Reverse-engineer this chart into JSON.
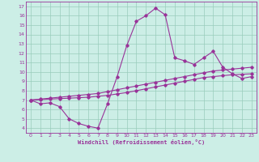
{
  "xlabel": "Windchill (Refroidissement éolien,°C)",
  "background_color": "#cceee6",
  "line_color": "#993399",
  "grid_color": "#99ccbb",
  "xlim": [
    -0.5,
    23.5
  ],
  "ylim": [
    3.5,
    17.5
  ],
  "xticks": [
    0,
    1,
    2,
    3,
    4,
    5,
    6,
    7,
    8,
    9,
    10,
    11,
    12,
    13,
    14,
    15,
    16,
    17,
    18,
    19,
    20,
    21,
    22,
    23
  ],
  "yticks": [
    4,
    5,
    6,
    7,
    8,
    9,
    10,
    11,
    12,
    13,
    14,
    15,
    16,
    17
  ],
  "series1_x": [
    0,
    1,
    2,
    3,
    4,
    5,
    6,
    7,
    8,
    9,
    10,
    11,
    12,
    13,
    14,
    15,
    16,
    17,
    18,
    19,
    20,
    21,
    22,
    23
  ],
  "series1_y": [
    7.0,
    6.6,
    6.7,
    6.3,
    5.0,
    4.5,
    4.2,
    4.0,
    6.6,
    9.5,
    12.8,
    15.4,
    16.0,
    16.8,
    16.1,
    11.5,
    11.2,
    10.8,
    11.5,
    12.2,
    10.5,
    9.8,
    9.3,
    9.5
  ],
  "series2_x": [
    0,
    1,
    2,
    3,
    4,
    5,
    6,
    7,
    8,
    9,
    10,
    11,
    12,
    13,
    14,
    15,
    16,
    17,
    18,
    19,
    20,
    21,
    22,
    23
  ],
  "series2_y": [
    7.0,
    7.1,
    7.2,
    7.3,
    7.4,
    7.5,
    7.6,
    7.7,
    7.9,
    8.1,
    8.3,
    8.5,
    8.7,
    8.9,
    9.1,
    9.3,
    9.5,
    9.7,
    9.9,
    10.1,
    10.2,
    10.3,
    10.4,
    10.5
  ],
  "series3_x": [
    0,
    1,
    2,
    3,
    4,
    5,
    6,
    7,
    8,
    9,
    10,
    11,
    12,
    13,
    14,
    15,
    16,
    17,
    18,
    19,
    20,
    21,
    22,
    23
  ],
  "series3_y": [
    7.0,
    7.05,
    7.1,
    7.15,
    7.2,
    7.25,
    7.3,
    7.4,
    7.5,
    7.65,
    7.8,
    8.0,
    8.2,
    8.4,
    8.6,
    8.8,
    9.0,
    9.2,
    9.4,
    9.5,
    9.6,
    9.7,
    9.75,
    9.8
  ],
  "marker": "D",
  "markersize": 1.8,
  "linewidth": 0.8
}
